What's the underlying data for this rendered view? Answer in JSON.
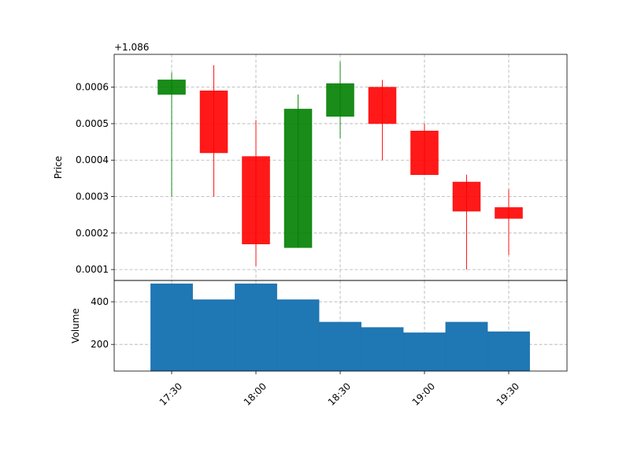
{
  "chart_data": [
    {
      "type": "candlestick",
      "panel": "price",
      "ylabel": "Price",
      "offset_text": "+1.086",
      "ylim": [
        7e-05,
        0.00069
      ],
      "yticks": [
        0.0001,
        0.0002,
        0.0003,
        0.0004,
        0.0005,
        0.0006
      ],
      "ytick_labels": [
        "0.0001",
        "0.0002",
        "0.0003",
        "0.0004",
        "0.0005",
        "0.0006"
      ],
      "grid": true,
      "up_color": "#008000",
      "down_color": "#ff0000",
      "x": [
        "17:30",
        "17:45",
        "18:00",
        "18:15",
        "18:30",
        "18:45",
        "19:00",
        "19:15",
        "19:30"
      ],
      "open": [
        0.00058,
        0.00059,
        0.00041,
        0.00016,
        0.00052,
        0.0006,
        0.00048,
        0.00034,
        0.00027
      ],
      "high": [
        0.00064,
        0.00066,
        0.00051,
        0.00058,
        0.00067,
        0.00062,
        0.0005,
        0.00036,
        0.00032
      ],
      "low": [
        0.0003,
        0.0003,
        0.00011,
        0.00016,
        0.00046,
        0.0004,
        0.00036,
        0.0001,
        0.00014
      ],
      "close": [
        0.00062,
        0.00042,
        0.00017,
        0.00054,
        0.00061,
        0.0005,
        0.00036,
        0.00026,
        0.00024
      ]
    },
    {
      "type": "bar",
      "panel": "volume",
      "ylabel": "Volume",
      "ylim": [
        75,
        500
      ],
      "yticks": [
        200,
        400
      ],
      "ytick_labels": [
        "200",
        "400"
      ],
      "grid": true,
      "bar_color": "#1f77b4",
      "x": [
        "17:30",
        "17:45",
        "18:00",
        "18:15",
        "18:30",
        "18:45",
        "19:00",
        "19:15",
        "19:30"
      ],
      "values": [
        485,
        410,
        485,
        410,
        305,
        280,
        255,
        305,
        260
      ]
    }
  ],
  "x_axis": {
    "tick_labels": [
      "17:30",
      "18:00",
      "18:30",
      "19:00",
      "19:30"
    ],
    "label_rotation": 45
  }
}
